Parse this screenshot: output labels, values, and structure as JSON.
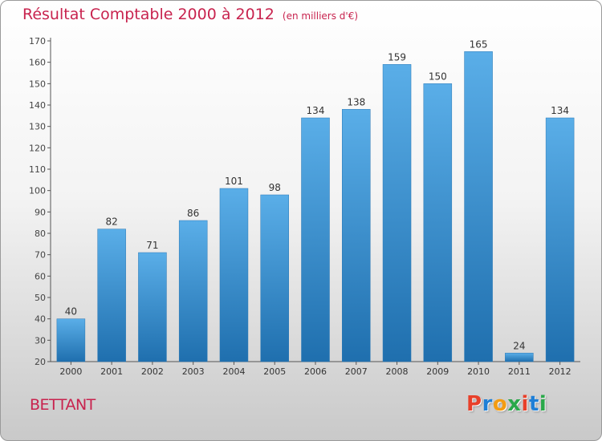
{
  "header": {
    "title": "Résultat Comptable 2000 à 2012",
    "unit_note": "(en milliers d'€)"
  },
  "footer": {
    "place": "BETTANT",
    "logo_text": "Proxiti",
    "logo_letter_colors": [
      "#e8402a",
      "#1f7fd6",
      "#f39c12",
      "#2aa84a",
      "#e8402a",
      "#1f7fd6",
      "#2aa84a"
    ]
  },
  "colors": {
    "title": "#c8234e",
    "bar_top": "#5aaee8",
    "bar_bottom": "#1f6fae",
    "axis": "#555555"
  },
  "chart_data": {
    "type": "bar",
    "title": "Résultat Comptable 2000 à 2012",
    "subtitle": "(en milliers d'€)",
    "xlabel": "",
    "ylabel": "",
    "categories": [
      "2000",
      "2001",
      "2002",
      "2003",
      "2004",
      "2005",
      "2006",
      "2007",
      "2008",
      "2009",
      "2010",
      "2011",
      "2012"
    ],
    "values": [
      40,
      82,
      71,
      86,
      101,
      98,
      134,
      138,
      159,
      150,
      165,
      24,
      134
    ],
    "ylim": [
      20,
      170
    ],
    "yticks": [
      20,
      30,
      40,
      50,
      60,
      70,
      80,
      90,
      100,
      110,
      120,
      130,
      140,
      150,
      160,
      170
    ],
    "grid": false,
    "legend": "none"
  }
}
